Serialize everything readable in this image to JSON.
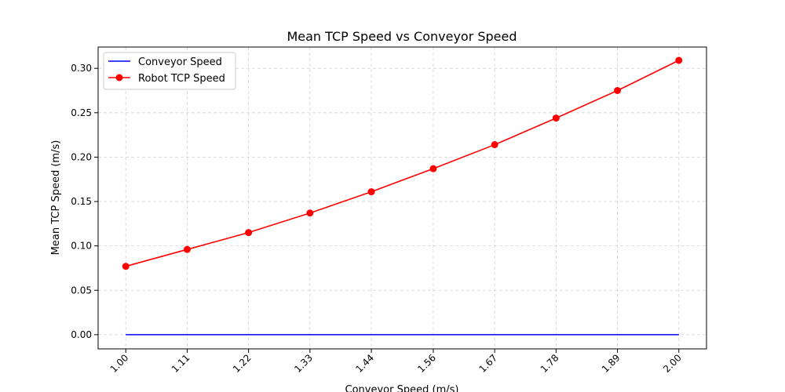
{
  "chart_data": {
    "type": "line",
    "title": "Mean TCP Speed vs Conveyor Speed",
    "xlabel": "Conveyor Speed (m/s)",
    "ylabel": "Mean TCP Speed (m/s)",
    "x": [
      1.0,
      1.111,
      1.222,
      1.333,
      1.444,
      1.556,
      1.667,
      1.778,
      1.889,
      2.0
    ],
    "x_tick_labels": [
      "1.00",
      "1.11",
      "1.22",
      "1.33",
      "1.44",
      "1.56",
      "1.67",
      "1.78",
      "1.89",
      "2.00"
    ],
    "x_tick_rotation_deg": 45,
    "xlim": [
      0.95,
      2.05
    ],
    "ylim": [
      -0.016,
      0.324
    ],
    "y_ticks": [
      0.0,
      0.05,
      0.1,
      0.15,
      0.2,
      0.25,
      0.3
    ],
    "y_tick_labels": [
      "0.00",
      "0.05",
      "0.10",
      "0.15",
      "0.20",
      "0.25",
      "0.30"
    ],
    "grid": true,
    "legend_position": "top-left",
    "series": [
      {
        "name": "Conveyor Speed",
        "color": "#0000ff",
        "marker": "none",
        "values": [
          0.0,
          0.0,
          0.0,
          0.0,
          0.0,
          0.0,
          0.0,
          0.0,
          0.0,
          0.0
        ]
      },
      {
        "name": "Robot TCP Speed",
        "color": "#ff0000",
        "marker": "circle",
        "values": [
          0.077,
          0.096,
          0.115,
          0.137,
          0.161,
          0.187,
          0.214,
          0.244,
          0.275,
          0.309
        ]
      }
    ]
  }
}
